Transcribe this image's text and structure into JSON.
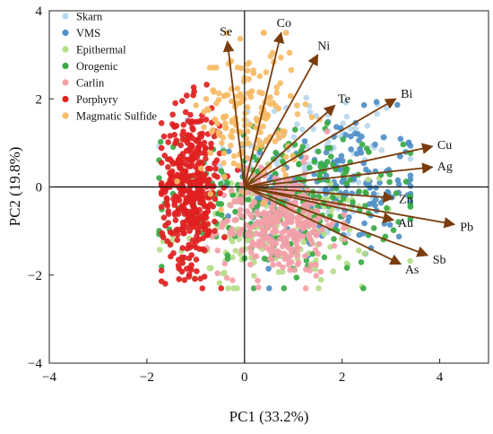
{
  "chart_data": {
    "type": "scatter",
    "subtype": "pca-biplot",
    "xlabel": "PC1 (33.2%)",
    "ylabel": "PC2 (19.8%)",
    "xlim": [
      -4,
      5
    ],
    "ylim": [
      -4,
      4
    ],
    "xticks": [
      -4,
      -2,
      0,
      2,
      4
    ],
    "yticks": [
      -4,
      -2,
      0,
      2,
      4
    ],
    "grid": false,
    "legend_position": "top-left",
    "series": [
      {
        "name": "Skarn",
        "color": "#b8d8ee",
        "center": [
          1.4,
          0.5
        ],
        "spread": [
          1.0,
          0.9
        ],
        "count": 120
      },
      {
        "name": "VMS",
        "color": "#4f8fc6",
        "center": [
          1.9,
          0.0
        ],
        "spread": [
          0.9,
          0.8
        ],
        "count": 180
      },
      {
        "name": "Epithermal",
        "color": "#b6dd8a",
        "center": [
          0.6,
          -1.0
        ],
        "spread": [
          1.0,
          0.6
        ],
        "count": 170
      },
      {
        "name": "Orogenic",
        "color": "#3aaa45",
        "center": [
          0.8,
          -0.3
        ],
        "spread": [
          1.2,
          0.8
        ],
        "count": 260
      },
      {
        "name": "Carlin",
        "color": "#f2a0a8",
        "center": [
          0.7,
          -0.8
        ],
        "spread": [
          0.6,
          0.6
        ],
        "count": 340
      },
      {
        "name": "Porphyry",
        "color": "#e02121",
        "center": [
          -1.1,
          0.0
        ],
        "spread": [
          0.3,
          0.9
        ],
        "count": 420
      },
      {
        "name": "Magmatic Sulfide",
        "color": "#f6bb66",
        "center": [
          0.1,
          1.6
        ],
        "spread": [
          0.5,
          0.8
        ],
        "count": 170
      }
    ],
    "loadings": [
      {
        "label": "Se",
        "x": -0.35,
        "y": 3.3
      },
      {
        "label": "Co",
        "x": 0.75,
        "y": 3.5
      },
      {
        "label": "Ni",
        "x": 1.5,
        "y": 3.0
      },
      {
        "label": "Te",
        "x": 1.85,
        "y": 1.85
      },
      {
        "label": "Bi",
        "x": 3.1,
        "y": 2.0
      },
      {
        "label": "Cu",
        "x": 3.85,
        "y": 0.92
      },
      {
        "label": "Ag",
        "x": 3.85,
        "y": 0.45
      },
      {
        "label": "Zn",
        "x": 3.05,
        "y": -0.25
      },
      {
        "label": "Pb",
        "x": 4.3,
        "y": -0.85
      },
      {
        "label": "Au",
        "x": 3.05,
        "y": -0.75
      },
      {
        "label": "Sb",
        "x": 3.75,
        "y": -1.55
      },
      {
        "label": "As",
        "x": 3.2,
        "y": -1.75
      }
    ],
    "arrow_color": "#7a3c0c"
  }
}
